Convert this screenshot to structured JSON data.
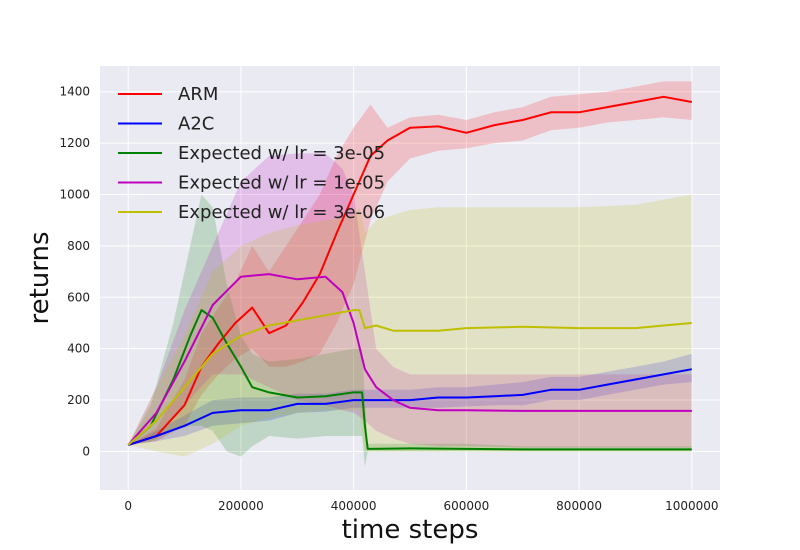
{
  "chart_data": {
    "type": "line",
    "title": "",
    "xlabel": "time steps",
    "ylabel": "returns",
    "xlim": [
      -50000,
      1050000
    ],
    "ylim": [
      -150,
      1500
    ],
    "x_ticks": [
      0,
      200000,
      400000,
      600000,
      800000,
      1000000
    ],
    "x_tick_labels": [
      "0",
      "200000",
      "400000",
      "600000",
      "800000",
      "1000000"
    ],
    "y_ticks": [
      0,
      200,
      400,
      600,
      800,
      1000,
      1200,
      1400
    ],
    "y_tick_labels": [
      "0",
      "200",
      "400",
      "600",
      "800",
      "1000",
      "1200",
      "1400"
    ],
    "grid": true,
    "legend_position": "top-left",
    "background": "#eaeaf2",
    "series": [
      {
        "name": "ARM",
        "color": "#ff0000",
        "x": [
          0,
          50000,
          100000,
          130000,
          160000,
          190000,
          220000,
          250000,
          280000,
          310000,
          340000,
          370000,
          400000,
          430000,
          460000,
          500000,
          550000,
          600000,
          650000,
          700000,
          750000,
          800000,
          850000,
          900000,
          950000,
          1000000
        ],
        "values": [
          25,
          60,
          180,
          330,
          420,
          500,
          560,
          460,
          490,
          580,
          690,
          850,
          1000,
          1150,
          1210,
          1260,
          1265,
          1240,
          1270,
          1290,
          1320,
          1320,
          1340,
          1360,
          1380,
          1360
        ],
        "lower": [
          25,
          40,
          100,
          220,
          300,
          360,
          400,
          330,
          330,
          350,
          380,
          500,
          650,
          900,
          1050,
          1140,
          1170,
          1180,
          1200,
          1210,
          1250,
          1260,
          1280,
          1290,
          1300,
          1290
        ],
        "upper": [
          25,
          90,
          280,
          460,
          560,
          660,
          800,
          700,
          800,
          900,
          1000,
          1150,
          1260,
          1350,
          1260,
          1300,
          1310,
          1290,
          1320,
          1340,
          1380,
          1390,
          1400,
          1420,
          1440,
          1440
        ]
      },
      {
        "name": "A2C",
        "color": "#0000ff",
        "x": [
          0,
          50000,
          100000,
          150000,
          200000,
          250000,
          300000,
          350000,
          400000,
          450000,
          500000,
          550000,
          600000,
          650000,
          700000,
          750000,
          800000,
          850000,
          900000,
          950000,
          1000000
        ],
        "values": [
          25,
          60,
          100,
          150,
          160,
          160,
          185,
          185,
          200,
          200,
          200,
          210,
          210,
          215,
          220,
          240,
          240,
          260,
          280,
          300,
          320
        ],
        "lower": [
          25,
          40,
          60,
          100,
          110,
          120,
          150,
          155,
          170,
          170,
          170,
          170,
          175,
          180,
          180,
          200,
          200,
          220,
          240,
          260,
          270
        ],
        "upper": [
          25,
          80,
          140,
          200,
          210,
          210,
          225,
          225,
          240,
          240,
          240,
          250,
          250,
          260,
          270,
          290,
          290,
          310,
          330,
          350,
          380
        ]
      },
      {
        "name": "Expected w/ lr = 3e-05",
        "color": "#008000",
        "x": [
          0,
          40000,
          80000,
          110000,
          130000,
          150000,
          175000,
          200000,
          220000,
          250000,
          300000,
          350000,
          400000,
          415000,
          420000,
          425000,
          500000,
          600000,
          700000,
          800000,
          900000,
          1000000
        ],
        "values": [
          25,
          100,
          280,
          450,
          550,
          520,
          420,
          330,
          250,
          230,
          210,
          215,
          230,
          230,
          100,
          10,
          12,
          10,
          8,
          8,
          8,
          8
        ],
        "lower": [
          25,
          40,
          80,
          100,
          100,
          80,
          0,
          -20,
          20,
          60,
          50,
          60,
          60,
          60,
          -60,
          0,
          0,
          0,
          0,
          0,
          0,
          0
        ],
        "upper": [
          25,
          180,
          500,
          800,
          1000,
          950,
          650,
          450,
          380,
          350,
          360,
          380,
          400,
          400,
          200,
          30,
          30,
          30,
          20,
          20,
          20,
          20
        ]
      },
      {
        "name": "Expected w/ lr = 1e-05",
        "color": "#bf00bf",
        "x": [
          0,
          50000,
          100000,
          150000,
          200000,
          250000,
          300000,
          350000,
          380000,
          400000,
          420000,
          440000,
          470000,
          500000,
          550000,
          600000,
          700000,
          800000,
          900000,
          1000000
        ],
        "values": [
          25,
          150,
          350,
          570,
          680,
          690,
          670,
          680,
          620,
          500,
          320,
          250,
          200,
          170,
          160,
          160,
          158,
          158,
          158,
          158
        ],
        "lower": [
          25,
          60,
          180,
          300,
          300,
          250,
          200,
          180,
          160,
          150,
          120,
          80,
          50,
          30,
          20,
          20,
          15,
          15,
          15,
          15
        ],
        "upper": [
          25,
          250,
          550,
          800,
          1050,
          1150,
          1160,
          1160,
          1100,
          1000,
          700,
          400,
          330,
          300,
          300,
          300,
          300,
          300,
          300,
          300
        ]
      },
      {
        "name": "Expected w/ lr = 3e-06",
        "color": "#bfbf00",
        "x": [
          0,
          50000,
          100000,
          150000,
          200000,
          250000,
          300000,
          350000,
          400000,
          410000,
          420000,
          440000,
          470000,
          500000,
          550000,
          600000,
          700000,
          800000,
          900000,
          950000,
          1000000
        ],
        "values": [
          25,
          120,
          250,
          380,
          450,
          490,
          510,
          530,
          550,
          550,
          480,
          490,
          470,
          470,
          470,
          480,
          485,
          480,
          480,
          490,
          500
        ],
        "lower": [
          25,
          0,
          -20,
          30,
          100,
          130,
          150,
          160,
          160,
          160,
          0,
          0,
          0,
          0,
          0,
          0,
          0,
          0,
          0,
          0,
          0
        ],
        "upper": [
          25,
          250,
          450,
          700,
          800,
          850,
          880,
          900,
          920,
          950,
          850,
          900,
          920,
          940,
          950,
          950,
          950,
          950,
          960,
          980,
          1000
        ]
      }
    ]
  }
}
